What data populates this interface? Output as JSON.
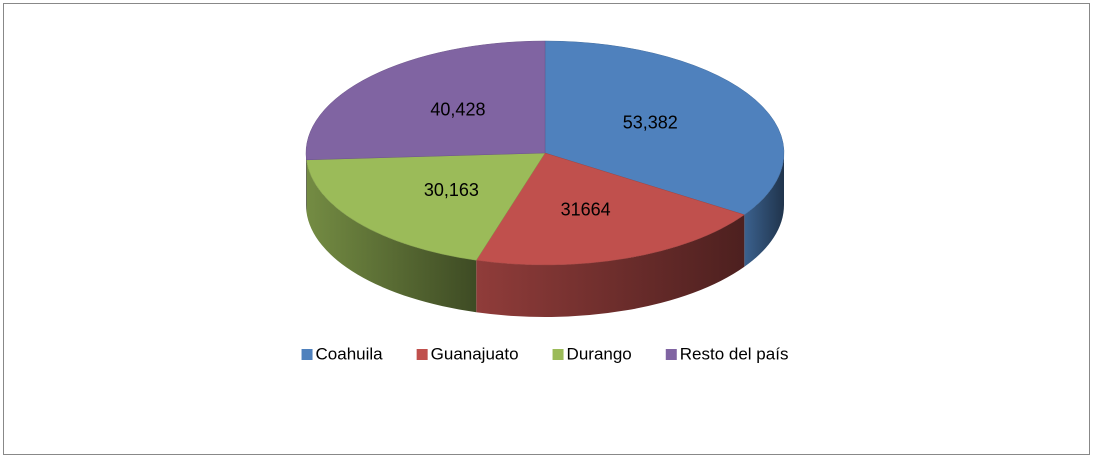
{
  "chart_data": {
    "type": "pie3d",
    "categories": [
      "Coahuila",
      "Guanajuato",
      "Durango",
      "Resto del país"
    ],
    "values": [
      53382,
      31664,
      30163,
      40428
    ],
    "value_labels": [
      "53,382",
      "31664",
      "30,163",
      "40,428"
    ],
    "colors": [
      "#4f81bd",
      "#c0504d",
      "#9bbb59",
      "#8064a2"
    ],
    "legend": "bottom"
  }
}
